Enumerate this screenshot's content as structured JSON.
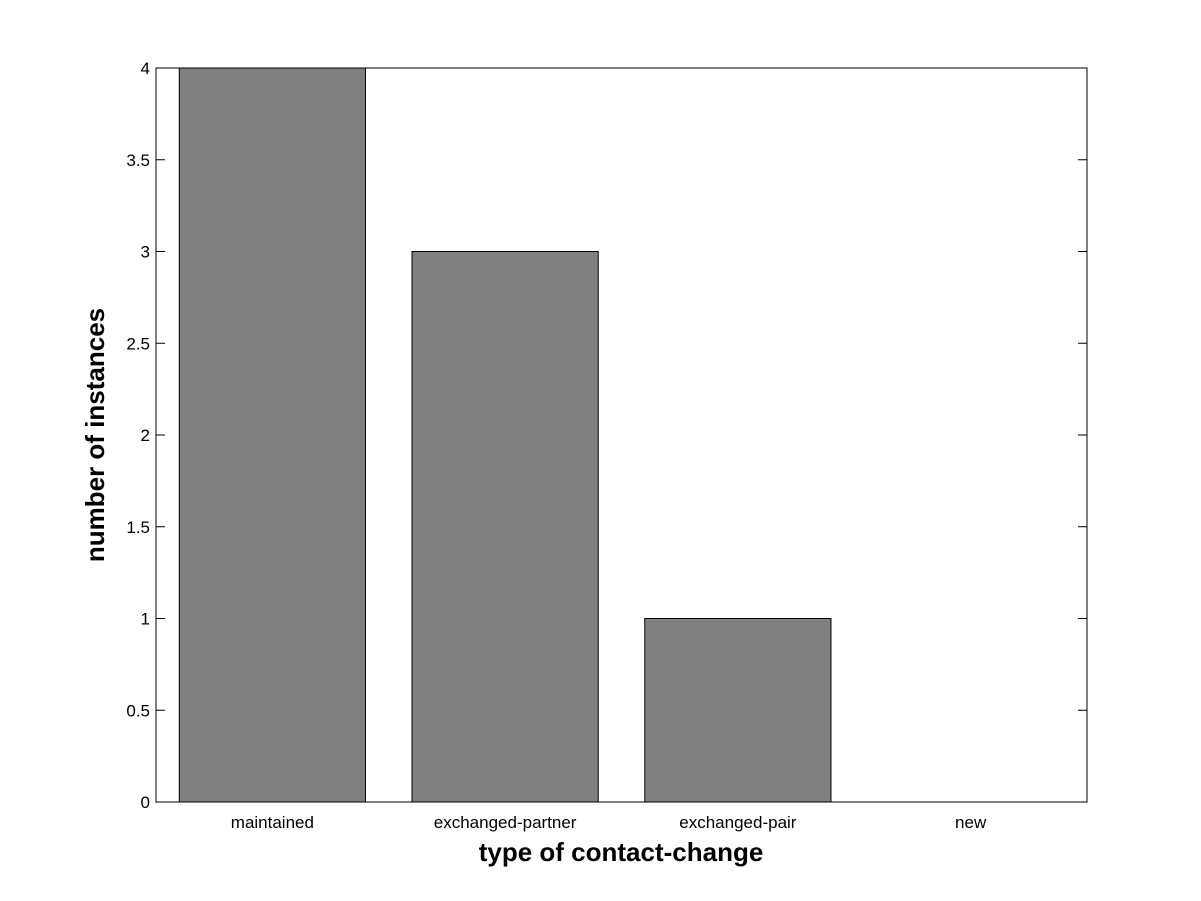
{
  "chart_data": {
    "type": "bar",
    "title": "",
    "xlabel": "type of contact-change",
    "ylabel": "number of instances",
    "categories": [
      "maintained",
      "exchanged-partner",
      "exchanged-pair",
      "new"
    ],
    "values": [
      4,
      3,
      1,
      0
    ],
    "ylim": [
      0,
      4
    ],
    "yticks": [
      "0",
      "0.5",
      "1",
      "1.5",
      "2",
      "2.5",
      "3",
      "3.5",
      "4"
    ],
    "grid": false,
    "bar_color": "#808080",
    "background": "#ffffff"
  }
}
